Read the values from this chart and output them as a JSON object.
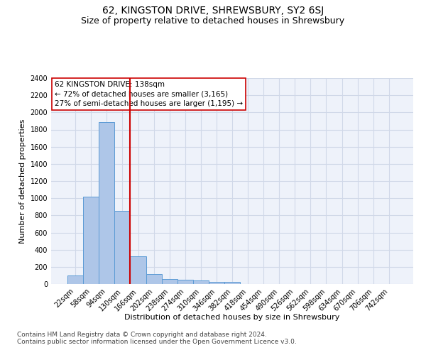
{
  "title": "62, KINGSTON DRIVE, SHREWSBURY, SY2 6SJ",
  "subtitle": "Size of property relative to detached houses in Shrewsbury",
  "xlabel": "Distribution of detached houses by size in Shrewsbury",
  "ylabel": "Number of detached properties",
  "footnote1": "Contains HM Land Registry data © Crown copyright and database right 2024.",
  "footnote2": "Contains public sector information licensed under the Open Government Licence v3.0.",
  "annotation_line1": "62 KINGSTON DRIVE: 138sqm",
  "annotation_line2": "← 72% of detached houses are smaller (3,165)",
  "annotation_line3": "27% of semi-detached houses are larger (1,195) →",
  "bar_labels": [
    "22sqm",
    "58sqm",
    "94sqm",
    "130sqm",
    "166sqm",
    "202sqm",
    "238sqm",
    "274sqm",
    "310sqm",
    "346sqm",
    "382sqm",
    "418sqm",
    "454sqm",
    "490sqm",
    "526sqm",
    "562sqm",
    "598sqm",
    "634sqm",
    "670sqm",
    "706sqm",
    "742sqm"
  ],
  "bar_values": [
    97,
    1020,
    1890,
    855,
    325,
    118,
    58,
    48,
    38,
    25,
    25,
    0,
    0,
    0,
    0,
    0,
    0,
    0,
    0,
    0,
    0
  ],
  "bar_color": "#aec6e8",
  "bar_edge_color": "#5b9bd5",
  "vline_x_index": 3.5,
  "vline_color": "#cc0000",
  "ylim": [
    0,
    2400
  ],
  "yticks": [
    0,
    200,
    400,
    600,
    800,
    1000,
    1200,
    1400,
    1600,
    1800,
    2000,
    2200,
    2400
  ],
  "grid_color": "#d0d8e8",
  "bg_color": "#eef2fa",
  "annotation_box_color": "#cc0000",
  "title_fontsize": 10,
  "subtitle_fontsize": 9,
  "axis_label_fontsize": 8,
  "tick_fontsize": 7,
  "annotation_fontsize": 7.5,
  "footnote_fontsize": 6.5
}
